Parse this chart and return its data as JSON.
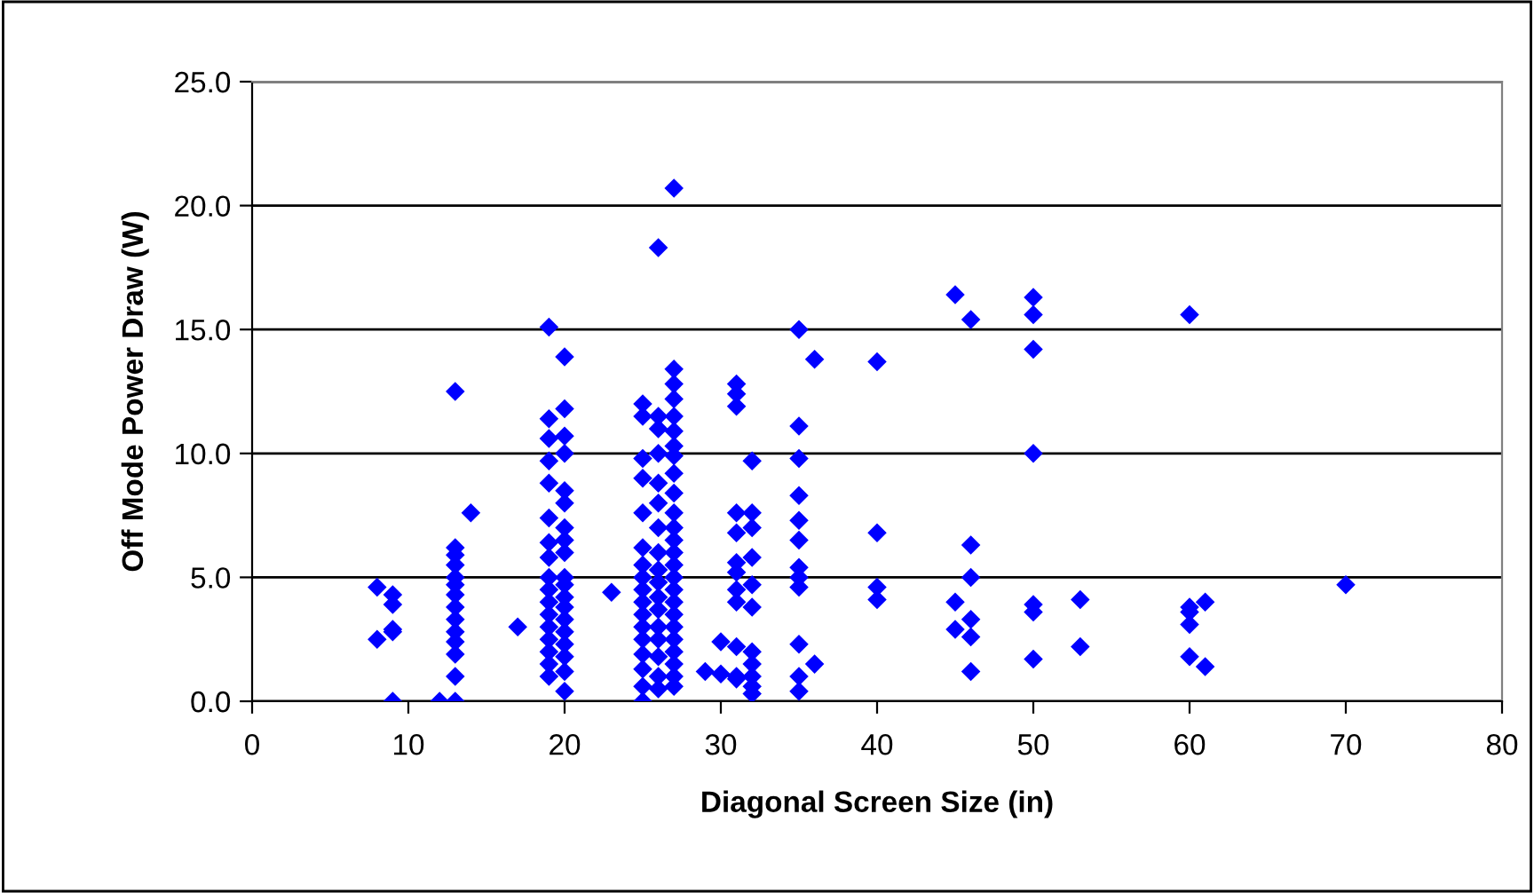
{
  "chart_data": {
    "type": "scatter",
    "xlabel": "Diagonal Screen Size (in)",
    "ylabel": "Off Mode Power Draw (W)",
    "xlim": [
      0,
      80
    ],
    "xticks": [
      0,
      10,
      20,
      30,
      40,
      50,
      60,
      70,
      80
    ],
    "ylim": [
      0,
      25
    ],
    "yticks": [
      {
        "value": 0,
        "label": "0.0"
      },
      {
        "value": 5,
        "label": "5.0"
      },
      {
        "value": 10,
        "label": "10.0"
      },
      {
        "value": 15,
        "label": "15.0"
      },
      {
        "value": 20,
        "label": "20.0"
      },
      {
        "value": 25,
        "label": "25.0"
      }
    ],
    "grid": "y",
    "marker": "diamond",
    "legend": false,
    "series": [
      {
        "color": "#0000ff",
        "x": [
          8,
          8,
          9,
          9,
          9,
          9,
          9,
          12,
          13,
          13,
          13,
          13,
          13,
          13,
          13,
          13,
          13,
          13,
          13,
          13,
          13,
          13,
          14,
          17,
          19,
          19,
          19,
          19,
          19,
          19,
          19,
          19,
          19,
          19,
          19,
          19,
          19,
          19,
          19,
          19,
          19,
          20,
          20,
          20,
          20,
          20,
          20,
          20,
          20,
          20,
          20,
          20,
          20,
          20,
          20,
          20,
          20,
          20,
          20,
          20,
          23,
          25,
          25,
          25,
          25,
          25,
          25,
          25,
          25,
          25,
          25,
          25,
          25,
          25,
          25,
          25,
          25,
          25,
          26,
          26,
          26,
          26,
          26,
          26,
          26,
          26,
          26,
          26,
          26,
          26,
          26,
          26,
          26,
          26,
          26,
          27,
          27,
          27,
          27,
          27,
          27,
          27,
          27,
          27,
          27,
          27,
          27,
          27,
          27,
          27,
          27,
          27,
          27,
          27,
          27,
          27,
          27,
          27,
          27,
          27,
          29,
          30,
          30,
          31,
          31,
          31,
          31,
          31,
          31,
          31,
          31,
          31,
          31,
          31,
          31,
          32,
          32,
          32,
          32,
          32,
          32,
          32,
          32,
          32,
          32,
          32,
          35,
          35,
          35,
          35,
          35,
          35,
          35,
          35,
          35,
          35,
          35,
          35,
          36,
          36,
          40,
          40,
          40,
          40,
          45,
          45,
          45,
          46,
          46,
          46,
          46,
          46,
          46,
          50,
          50,
          50,
          50,
          50,
          50,
          50,
          53,
          53,
          60,
          60,
          60,
          60,
          60,
          61,
          61,
          70
        ],
        "values": [
          4.6,
          2.5,
          4.3,
          3.9,
          2.9,
          2.8,
          0.0,
          0.0,
          12.5,
          6.2,
          5.9,
          5.5,
          5.0,
          4.7,
          4.3,
          3.8,
          3.3,
          2.8,
          2.4,
          1.9,
          1.0,
          0.0,
          7.6,
          3.0,
          15.1,
          11.4,
          10.6,
          9.7,
          8.8,
          7.4,
          6.4,
          5.8,
          5.0,
          4.5,
          4.0,
          3.5,
          3.0,
          2.5,
          2.0,
          1.5,
          1.0,
          13.9,
          11.8,
          10.7,
          10.0,
          8.5,
          8.0,
          7.0,
          6.5,
          6.0,
          5.0,
          4.7,
          4.2,
          3.8,
          3.3,
          2.8,
          2.3,
          1.8,
          1.2,
          0.4,
          4.4,
          12.0,
          11.5,
          9.8,
          9.0,
          7.6,
          6.2,
          5.5,
          5.0,
          4.5,
          4.0,
          3.5,
          3.0,
          2.5,
          1.9,
          1.3,
          0.6,
          0.0,
          18.3,
          11.5,
          11.0,
          10.0,
          8.8,
          8.0,
          7.0,
          6.0,
          5.3,
          4.8,
          4.2,
          3.7,
          3.0,
          2.5,
          1.8,
          1.0,
          0.5,
          20.7,
          13.4,
          12.8,
          12.2,
          11.5,
          10.9,
          10.3,
          9.9,
          9.2,
          8.4,
          7.6,
          7.0,
          6.5,
          6.0,
          5.5,
          5.0,
          4.5,
          4.0,
          3.5,
          3.0,
          2.5,
          2.0,
          1.5,
          1.0,
          0.6,
          1.2,
          2.4,
          1.1,
          12.8,
          12.4,
          11.9,
          7.6,
          6.8,
          5.6,
          5.2,
          4.5,
          4.0,
          2.2,
          1.0,
          0.9,
          9.7,
          7.6,
          7.0,
          5.8,
          4.7,
          3.8,
          2.0,
          1.5,
          1.0,
          0.3,
          0.6,
          15.0,
          11.1,
          9.8,
          8.3,
          7.3,
          6.5,
          5.4,
          5.0,
          4.6,
          2.3,
          1.0,
          0.4,
          13.8,
          1.5,
          13.7,
          6.8,
          4.6,
          4.1,
          16.4,
          4.0,
          2.9,
          15.4,
          6.3,
          5.0,
          3.3,
          2.6,
          1.2,
          16.3,
          15.6,
          14.2,
          10.0,
          3.9,
          3.6,
          1.7,
          4.1,
          2.2,
          15.6,
          3.8,
          3.6,
          3.1,
          1.8,
          4.0,
          1.4,
          4.7
        ]
      }
    ]
  }
}
